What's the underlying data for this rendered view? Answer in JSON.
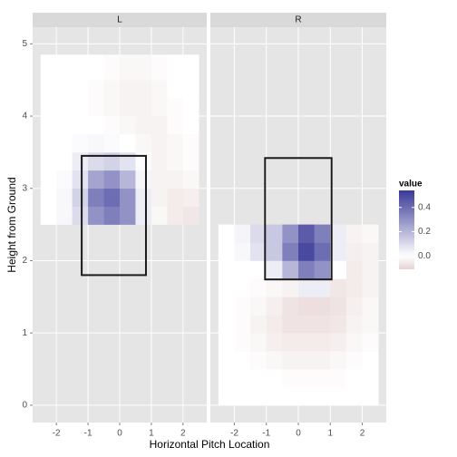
{
  "chart_data": {
    "type": "heatmap",
    "xlabel": "Horizontal Pitch Location",
    "ylabel": "Height from Ground",
    "xlim": [
      -2.75,
      2.75
    ],
    "ylim": [
      -0.24,
      5.23
    ],
    "xticks": [
      -2,
      -1,
      0,
      1,
      2
    ],
    "yticks": [
      0,
      1,
      2,
      3,
      4,
      5
    ],
    "grid": true,
    "legend_title": "value",
    "color_low": "#832424",
    "color_mid": "#ffffff",
    "color_high": "#3a3a98",
    "color_limits": [
      -0.11,
      0.54
    ],
    "color_ticks": [
      {
        "value": 0,
        "label": "0.0"
      },
      0.2,
      0.4
    ],
    "panels": [
      {
        "name": "L",
        "x_edges": [
          -2.5,
          -2,
          -1.5,
          -1,
          -0.5,
          0,
          0.5,
          1,
          1.5,
          2,
          2.5
        ],
        "y_edges": [
          2.5,
          2.75,
          3,
          3.25,
          3.5,
          3.75,
          4,
          4.25,
          4.5,
          4.85
        ],
        "values": [
          [
            0,
            0.02,
            0.1,
            0.3,
            0.35,
            0.3,
            0.05,
            -0.02,
            -0.05,
            -0.06
          ],
          [
            0,
            0.02,
            0.12,
            0.35,
            0.4,
            0.3,
            0.05,
            -0.03,
            -0.05,
            -0.04
          ],
          [
            0,
            0.01,
            0.08,
            0.25,
            0.3,
            0.2,
            0.03,
            -0.03,
            -0.03,
            -0.02
          ],
          [
            0,
            0,
            0.05,
            0.1,
            0.12,
            0.08,
            0.01,
            -0.03,
            -0.02,
            -0.01
          ],
          [
            0,
            0,
            0.01,
            0.02,
            0.01,
            0,
            -0.02,
            -0.03,
            -0.02,
            -0.01
          ],
          [
            0,
            0,
            0,
            0,
            -0.01,
            -0.02,
            -0.03,
            -0.03,
            -0.01,
            0
          ],
          [
            0,
            0,
            0,
            -0.01,
            -0.02,
            -0.03,
            -0.03,
            -0.02,
            -0.01,
            0
          ],
          [
            0,
            0,
            0,
            -0.01,
            -0.02,
            -0.03,
            -0.03,
            -0.02,
            0,
            0
          ],
          [
            0,
            0,
            0,
            0,
            -0.01,
            -0.02,
            -0.02,
            -0.01,
            0,
            0
          ]
        ],
        "zone_x": [
          -1.2,
          0.83
        ],
        "zone_y": [
          1.8,
          3.45
        ]
      },
      {
        "name": "R",
        "x_edges": [
          -2.5,
          -2,
          -1.5,
          -1,
          -0.5,
          0,
          0.5,
          1,
          1.5,
          2,
          2.5
        ],
        "y_edges": [
          0,
          0.25,
          0.5,
          0.75,
          1,
          1.25,
          1.5,
          1.75,
          2,
          2.25,
          2.5
        ],
        "values": [
          [
            0,
            0,
            0,
            0,
            0,
            0,
            0,
            0,
            0,
            0
          ],
          [
            0,
            0,
            0,
            0,
            -0.01,
            -0.01,
            -0.01,
            -0.01,
            0,
            0
          ],
          [
            0,
            0,
            -0.01,
            -0.02,
            -0.03,
            -0.03,
            -0.03,
            -0.02,
            -0.01,
            0
          ],
          [
            0,
            -0.01,
            -0.02,
            -0.04,
            -0.05,
            -0.05,
            -0.05,
            -0.04,
            -0.02,
            -0.01
          ],
          [
            0,
            -0.01,
            -0.03,
            -0.05,
            -0.07,
            -0.07,
            -0.07,
            -0.06,
            -0.03,
            -0.02
          ],
          [
            0,
            -0.01,
            -0.02,
            -0.04,
            -0.07,
            -0.08,
            -0.08,
            -0.07,
            -0.04,
            -0.02
          ],
          [
            0,
            0,
            -0.01,
            -0.02,
            -0.03,
            0.05,
            0.05,
            -0.06,
            -0.05,
            -0.03
          ],
          [
            0,
            0,
            0,
            0.05,
            0.2,
            0.35,
            0.3,
            0,
            -0.05,
            -0.03
          ],
          [
            0,
            0.02,
            0.08,
            0.15,
            0.35,
            0.5,
            0.4,
            0.05,
            -0.04,
            -0.03
          ],
          [
            0,
            0.03,
            0.1,
            0.15,
            0.3,
            0.45,
            0.35,
            0.05,
            -0.03,
            -0.02
          ]
        ],
        "zone_x": [
          -1.04,
          1.04
        ],
        "zone_y": [
          1.74,
          3.42
        ]
      }
    ]
  }
}
